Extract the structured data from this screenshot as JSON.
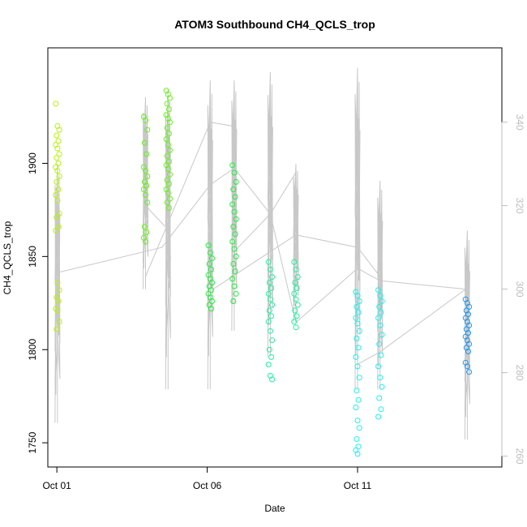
{
  "chart_data": {
    "type": "scatter",
    "title": "ATOM3 Southbound CH4_QCLS_trop",
    "xlabel": "Date",
    "ylabel": "CH4_QCLS_trop",
    "x_ticks": [
      "Oct 01",
      "Oct 06",
      "Oct 11"
    ],
    "x_tick_days": [
      1,
      6,
      11
    ],
    "xlim": [
      0.7,
      15.8
    ],
    "ylim": [
      1737,
      1962
    ],
    "y_ticks_left": [
      "1750",
      "1800",
      "1850",
      "1900"
    ],
    "y_ticks_right": [
      "260",
      "280",
      "300",
      "320",
      "340"
    ],
    "y2lim": [
      257.4,
      357.8
    ],
    "grid": false,
    "legend": "none",
    "series": [
      {
        "color": "#b7f20a",
        "clusters": [
          {
            "day": 1.02,
            "values": [
              1932,
              1920,
              1918,
              1915,
              1912,
              1910,
              1908,
              1905,
              1903,
              1900,
              1898,
              1896,
              1893,
              1890,
              1886,
              1883,
              1880,
              1873,
              1871,
              1866,
              1864,
              1836,
              1832,
              1828,
              1826,
              1822,
              1821,
              1815,
              1811
            ]
          }
        ]
      },
      {
        "color": "#66f21a",
        "clusters": [
          {
            "day": 3.95,
            "values": [
              1925,
              1923,
              1918,
              1911,
              1905,
              1898,
              1896,
              1893,
              1890,
              1888,
              1886,
              1883,
              1879,
              1866,
              1863,
              1860,
              1858
            ]
          },
          {
            "day": 4.7,
            "values": [
              1939,
              1937,
              1935,
              1932,
              1929,
              1926,
              1924,
              1922,
              1919,
              1916,
              1913,
              1910,
              1907,
              1904,
              1901,
              1899,
              1897,
              1894,
              1891,
              1889,
              1886,
              1884,
              1881,
              1879,
              1876
            ]
          }
        ]
      },
      {
        "color": "#1ef03a",
        "clusters": [
          {
            "day": 6.1,
            "values": [
              1856,
              1852,
              1849,
              1846,
              1843,
              1840,
              1838,
              1836,
              1834,
              1832,
              1830,
              1828,
              1826,
              1824,
              1822
            ]
          },
          {
            "day": 6.9,
            "values": [
              1899,
              1895,
              1890,
              1886,
              1882,
              1878,
              1874,
              1870,
              1866,
              1862,
              1858,
              1854,
              1850,
              1846,
              1842,
              1838,
              1834,
              1830,
              1826
            ]
          }
        ]
      },
      {
        "color": "#1ef0a0",
        "clusters": [
          {
            "day": 8.1,
            "values": [
              1847,
              1843,
              1839,
              1836,
              1833,
              1830,
              1827,
              1824,
              1821,
              1818,
              1815,
              1810,
              1805,
              1800,
              1796,
              1792,
              1786,
              1784
            ]
          },
          {
            "day": 8.95,
            "values": [
              1847,
              1843,
              1839,
              1836,
              1833,
              1830,
              1827,
              1824,
              1821,
              1818,
              1815,
              1812
            ]
          }
        ]
      },
      {
        "color": "#1ef0f0",
        "clusters": [
          {
            "day": 11.0,
            "values": [
              1831,
              1829,
              1826,
              1823,
              1820,
              1817,
              1814,
              1810,
              1806,
              1801,
              1796,
              1791,
              1785,
              1778,
              1773,
              1769,
              1762,
              1758,
              1752,
              1748,
              1746,
              1744
            ]
          },
          {
            "day": 11.75,
            "values": [
              1832,
              1829,
              1826,
              1823,
              1820,
              1817,
              1813,
              1808,
              1803,
              1797,
              1791,
              1785,
              1780,
              1774,
              1768,
              1764
            ]
          }
        ]
      },
      {
        "color": "#1e96f0",
        "clusters": [
          {
            "day": 14.65,
            "values": [
              1827,
              1825,
              1823,
              1821,
              1819,
              1817,
              1815,
              1813,
              1811,
              1809,
              1807,
              1805,
              1803,
              1801,
              1799,
              1793,
              1791,
              1788
            ]
          }
        ]
      }
    ],
    "secondary_line": {
      "color": "#c8c8c8",
      "spikes": [
        {
          "day": 1.02,
          "lo": 268,
          "hi": 330
        },
        {
          "day": 3.95,
          "lo": 300,
          "hi": 346
        },
        {
          "day": 4.7,
          "lo": 276,
          "hi": 348
        },
        {
          "day": 6.1,
          "lo": 276,
          "hi": 350
        },
        {
          "day": 6.9,
          "lo": 290,
          "hi": 350
        },
        {
          "day": 8.1,
          "lo": 284,
          "hi": 352
        },
        {
          "day": 8.95,
          "lo": 292,
          "hi": 330
        },
        {
          "day": 11.0,
          "lo": 276,
          "hi": 353
        },
        {
          "day": 11.75,
          "lo": 276,
          "hi": 326
        },
        {
          "day": 14.65,
          "lo": 264,
          "hi": 314
        }
      ],
      "connectors": [
        [
          [
            1.05,
            304
          ],
          [
            4.5,
            310
          ],
          [
            6.1,
            325
          ],
          [
            6.9,
            329
          ],
          [
            8.1,
            318
          ],
          [
            8.95,
            292
          ],
          [
            11.0,
            305
          ],
          [
            11.75,
            302
          ],
          [
            14.6,
            300
          ]
        ],
        [
          [
            3.95,
            303
          ],
          [
            6.1,
            340
          ],
          [
            6.9,
            339
          ]
        ],
        [
          [
            3.95,
            320
          ],
          [
            4.6,
            315
          ]
        ],
        [
          [
            6.2,
            300
          ],
          [
            8.95,
            313
          ],
          [
            11.0,
            310
          ],
          [
            11.75,
            303
          ]
        ],
        [
          [
            6.9,
            309
          ],
          [
            8.1,
            318
          ],
          [
            8.95,
            328
          ]
        ],
        [
          [
            11.0,
            282
          ],
          [
            11.75,
            285
          ],
          [
            14.6,
            300
          ]
        ]
      ]
    }
  }
}
